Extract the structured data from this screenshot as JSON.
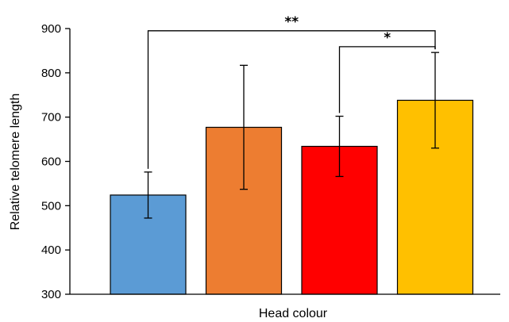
{
  "chart_data": {
    "type": "bar",
    "categories": [
      "",
      "",
      "",
      ""
    ],
    "values": [
      524,
      677,
      634,
      738
    ],
    "error": [
      52,
      140,
      68,
      108
    ],
    "colors": [
      "#5B9BD5",
      "#ED7D31",
      "#FF0000",
      "#FFC000"
    ],
    "xlabel": "Head colour",
    "ylabel": "Relative telomere length",
    "ylim": [
      300,
      900
    ],
    "yticks": [
      300,
      400,
      500,
      600,
      700,
      800,
      900
    ],
    "grid": false,
    "significance": [
      {
        "from": 0,
        "to": 3,
        "label": "**"
      },
      {
        "from": 2,
        "to": 3,
        "label": "*"
      }
    ]
  }
}
